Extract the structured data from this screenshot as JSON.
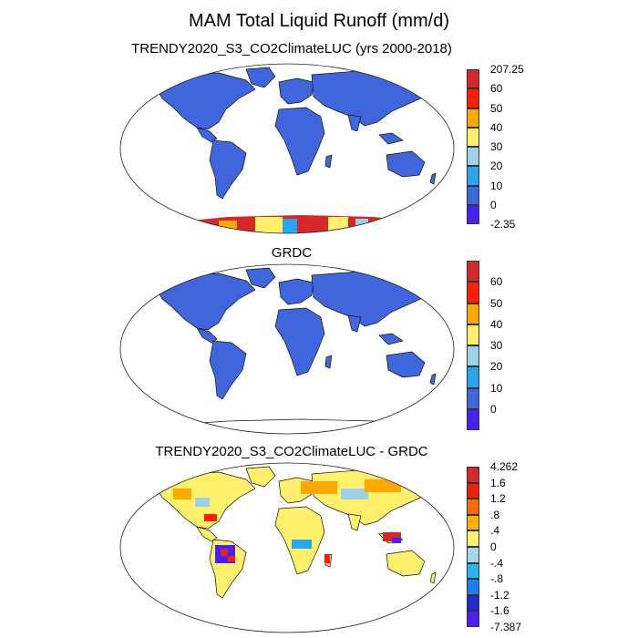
{
  "title": "MAM Total Liquid Runoff (mm/d)",
  "panels": [
    {
      "id": "model",
      "title": "TRENDY2020_S3_CO2ClimateLUC (yrs 2000-2018)",
      "colorbar": {
        "colors": [
          "#4a1ef5",
          "#3f66dd",
          "#2aa5f4",
          "#9ed2ea",
          "#fff06c",
          "#ffa800",
          "#ff1f00",
          "#d6282b"
        ],
        "labels": [
          "-2.35",
          "0",
          "10",
          "20",
          "30",
          "40",
          "50",
          "60",
          "207.25"
        ]
      }
    },
    {
      "id": "obs",
      "title": "GRDC",
      "colorbar": {
        "colors": [
          "#4a1ef5",
          "#3f66dd",
          "#2aa5f4",
          "#9ed2ea",
          "#fff06c",
          "#ffa800",
          "#ff1f00",
          "#d6282b"
        ],
        "labels": [
          "0",
          "10",
          "20",
          "30",
          "40",
          "50",
          "60"
        ]
      }
    },
    {
      "id": "diff",
      "title": "TRENDY2020_S3_CO2ClimateLUC - GRDC",
      "colorbar": {
        "colors": [
          "#4a1ef5",
          "#1d2bd6",
          "#1f7df2",
          "#28b7f6",
          "#a6d6ea",
          "#fff06c",
          "#ffb300",
          "#ff6a00",
          "#f12000",
          "#d6282b"
        ],
        "labels": [
          "-7.387",
          "-1.6",
          "-1.2",
          "-.8",
          "-.4",
          "0",
          ".4",
          ".8",
          "1.2",
          "1.6",
          "4.262"
        ]
      }
    }
  ]
}
